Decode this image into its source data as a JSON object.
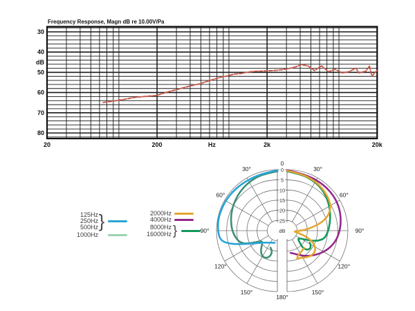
{
  "fr_chart": {
    "title": "Frequency Response, Magn dB re 10.00V/Pa",
    "x_tick_labels": [
      {
        "text": "20",
        "f": 20
      },
      {
        "text": "200",
        "f": 200
      },
      {
        "text": "Hz",
        "f": 630
      },
      {
        "text": "2k",
        "f": 2000
      },
      {
        "text": "20k",
        "f": 20000
      }
    ],
    "y_tick_labels": [
      {
        "text": "30",
        "db": 30
      },
      {
        "text": "40",
        "db": 40
      },
      {
        "text": "dB",
        "db": 45
      },
      {
        "text": "50",
        "db": 50
      },
      {
        "text": "60",
        "db": 60
      },
      {
        "text": "70",
        "db": 70
      },
      {
        "text": "80",
        "db": 80
      }
    ]
  },
  "polar_chart": {
    "top_label": "0",
    "bottom_label": "180°",
    "angle_labels": [
      "30°",
      "60°",
      "90°",
      "120°",
      "150°"
    ],
    "db_tick_labels": [
      "0",
      "5",
      "10",
      "15",
      "20",
      "25"
    ],
    "db_unit": "dB"
  },
  "legend": {
    "columns": [
      {
        "groups": [
          {
            "labels": [
              "125Hz",
              "250Hz",
              "500Hz"
            ],
            "brace": true,
            "color": "#29a4d6"
          },
          {
            "labels": [
              "1000Hz"
            ],
            "brace": false,
            "color": "#9cd2b0"
          }
        ]
      },
      {
        "groups": [
          {
            "labels": [
              "2000Hz"
            ],
            "brace": false,
            "color": "#e5a52f"
          },
          {
            "labels": [
              "4000Hz"
            ],
            "brace": false,
            "color": "#93278b"
          },
          {
            "labels": [
              "8000Hz",
              "16000Hz"
            ],
            "brace": true,
            "color": "#12995c"
          }
        ]
      }
    ]
  },
  "chart_data": [
    {
      "type": "line",
      "title": "Frequency Response, Magn dB re 10.00V/Pa",
      "xlabel": "Hz",
      "ylabel": "dB",
      "xscale": "log",
      "xlim": [
        20,
        20000
      ],
      "ylim": [
        30,
        80
      ],
      "y_inverted": true,
      "grid": "on",
      "x_ticks": [
        "20",
        "200",
        "Hz",
        "2k",
        "20k"
      ],
      "y_ticks": [
        30,
        40,
        50,
        60,
        70,
        80
      ],
      "series": [
        {
          "name": "frequency-response",
          "color": "#c5584a",
          "style": "dashed",
          "points": [
            [
              65,
              64.9
            ],
            [
              80,
              64.2
            ],
            [
              100,
              63.4
            ],
            [
              125,
              62.4
            ],
            [
              160,
              61.9
            ],
            [
              200,
              61.4
            ],
            [
              230,
              60.3
            ],
            [
              270,
              59.2
            ],
            [
              300,
              58.6
            ],
            [
              360,
              57.4
            ],
            [
              430,
              56.3
            ],
            [
              490,
              55.7
            ],
            [
              560,
              54.6
            ],
            [
              650,
              53.5
            ],
            [
              750,
              52.5
            ],
            [
              870,
              51.8
            ],
            [
              1000,
              50.9
            ],
            [
              1160,
              50.6
            ],
            [
              1300,
              50.0
            ],
            [
              1550,
              49.5
            ],
            [
              1800,
              49.4
            ],
            [
              2070,
              49.2
            ],
            [
              2400,
              49.0
            ],
            [
              2760,
              48.7
            ],
            [
              3300,
              47.9
            ],
            [
              3700,
              47.2
            ],
            [
              4100,
              46.2
            ],
            [
              4700,
              46.8
            ],
            [
              5400,
              49.1
            ],
            [
              6260,
              46.8
            ],
            [
              7220,
              49.7
            ],
            [
              8330,
              48.5
            ],
            [
              9610,
              50.3
            ],
            [
              11090,
              49.7
            ],
            [
              12800,
              47.9
            ],
            [
              13750,
              50.3
            ],
            [
              15860,
              49.4
            ],
            [
              17030,
              46.8
            ],
            [
              17900,
              51.9
            ],
            [
              20000,
              49.1
            ]
          ]
        }
      ]
    },
    {
      "type": "polar",
      "unit": "dB",
      "rings_db": [
        0,
        5,
        10,
        15,
        20,
        25
      ],
      "db_full_scale": 30,
      "angle_step_deg": 30,
      "series": [
        {
          "name": "1000Hz",
          "side": "left",
          "color": "#3e8f77",
          "points": [
            [
              0,
              0.8
            ],
            [
              15,
              1.2
            ],
            [
              30,
              2.2
            ],
            [
              45,
              3.4
            ],
            [
              60,
              4.8
            ],
            [
              72,
              6.0
            ],
            [
              82,
              7.0
            ],
            [
              90,
              7.8
            ],
            [
              97,
              8.8
            ],
            [
              103,
              9.8
            ],
            [
              108,
              11.0
            ],
            [
              112,
              13.0
            ],
            [
              115,
              15.5
            ],
            [
              118,
              18.0
            ],
            [
              121,
              19.8
            ],
            [
              125,
              20.8
            ],
            [
              130,
              20.3
            ],
            [
              136,
              18.6
            ],
            [
              142,
              16.8
            ],
            [
              148,
              15.6
            ],
            [
              154,
              15.2
            ],
            [
              160,
              15.8
            ],
            [
              164,
              17.0
            ],
            [
              166,
              18.6
            ],
            [
              163,
              20.2
            ],
            [
              158,
              21.0
            ]
          ]
        },
        {
          "name": "125-500Hz",
          "side": "left",
          "color": "#29a4d6",
          "points": [
            [
              0,
              0.3
            ],
            [
              15,
              0.9
            ],
            [
              30,
              1.1
            ],
            [
              45,
              0.8
            ],
            [
              60,
              0.4
            ],
            [
              75,
              0.3
            ],
            [
              85,
              0.5
            ],
            [
              95,
              1.0
            ],
            [
              100,
              2.0
            ],
            [
              104,
              4.5
            ],
            [
              108,
              8.5
            ],
            [
              112,
              12.5
            ],
            [
              117,
              16.0
            ],
            [
              123,
              18.8
            ],
            [
              130,
              20.8
            ],
            [
              140,
              22.3
            ],
            [
              150,
              23.2
            ],
            [
              160,
              23.7
            ],
            [
              168,
              23.9
            ]
          ]
        },
        {
          "name": "8000-16000Hz",
          "side": "right",
          "color": "#12995c",
          "points": [
            [
              0,
              0.8
            ],
            [
              15,
              1.3
            ],
            [
              30,
              2.3
            ],
            [
              42,
              3.5
            ],
            [
              52,
              4.8
            ],
            [
              62,
              6.2
            ],
            [
              72,
              7.6
            ],
            [
              81,
              8.7
            ],
            [
              89,
              9.6
            ],
            [
              96,
              10.4
            ],
            [
              102,
              11.4
            ],
            [
              106,
              13.0
            ],
            [
              110,
              15.2
            ],
            [
              113,
              17.6
            ],
            [
              116,
              20.0
            ],
            [
              120,
              22.3
            ],
            [
              125,
              23.3
            ],
            [
              130,
              22.6
            ],
            [
              134,
              21.0
            ],
            [
              137,
              19.0
            ],
            [
              136,
              17.2
            ],
            [
              132,
              16.0
            ],
            [
              127,
              15.6
            ],
            [
              122,
              16.2
            ],
            [
              118,
              17.3
            ]
          ]
        },
        {
          "name": "4000Hz",
          "side": "right",
          "color": "#93278b",
          "points": [
            [
              0,
              0.2
            ],
            [
              20,
              0.7
            ],
            [
              40,
              1.0
            ],
            [
              55,
              1.3
            ],
            [
              68,
              2.0
            ],
            [
              80,
              3.0
            ],
            [
              90,
              4.0
            ],
            [
              100,
              5.2
            ],
            [
              108,
              6.6
            ],
            [
              116,
              8.2
            ],
            [
              125,
              10.3
            ],
            [
              134,
              12.4
            ],
            [
              143,
              14.4
            ],
            [
              152,
              16.3
            ],
            [
              160,
              17.7
            ],
            [
              166,
              18.5
            ],
            [
              171,
              18.9
            ]
          ]
        },
        {
          "name": "2000Hz",
          "side": "right",
          "color": "#e5a52f",
          "points": [
            [
              0,
              0.5
            ],
            [
              15,
              1.1
            ],
            [
              30,
              2.0
            ],
            [
              40,
              2.9
            ],
            [
              48,
              3.7
            ],
            [
              55,
              4.5
            ],
            [
              61,
              5.5
            ],
            [
              66,
              7.0
            ],
            [
              71,
              9.0
            ],
            [
              75,
              11.5
            ],
            [
              79,
              14.5
            ],
            [
              83,
              18.0
            ],
            [
              87,
              21.0
            ],
            [
              91,
              24.0
            ],
            [
              95,
              26.3
            ],
            [
              99,
              26.0
            ],
            [
              103,
              23.5
            ],
            [
              107,
              20.5
            ],
            [
              111,
              17.8
            ],
            [
              116,
              15.3
            ],
            [
              122,
              13.5
            ],
            [
              128,
              12.7
            ],
            [
              135,
              12.8
            ],
            [
              142,
              13.5
            ],
            [
              149,
              14.5
            ],
            [
              156,
              15.2
            ],
            [
              161,
              15.1
            ],
            [
              157,
              16.6
            ],
            [
              149,
              17.3
            ],
            [
              141,
              17.8
            ],
            [
              135,
              18.0
            ]
          ]
        }
      ]
    }
  ]
}
